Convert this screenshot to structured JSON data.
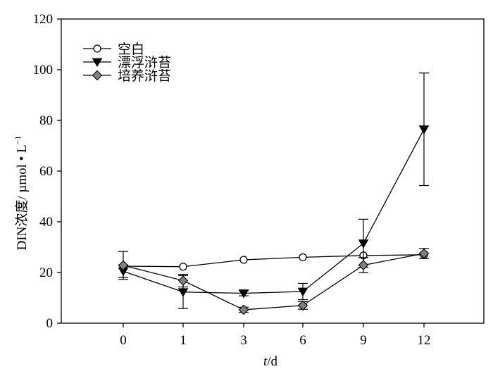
{
  "chart_data": {
    "type": "line",
    "categories": [
      "0",
      "1",
      "3",
      "6",
      "9",
      "12"
    ],
    "xlabel": {
      "italic": "t",
      "rest": "/d"
    },
    "ylabel": "DIN浓度/ µmol • L",
    "ylabel_superscript": "−1",
    "ylim": [
      0,
      120
    ],
    "yticks": [
      "0",
      "20",
      "40",
      "60",
      "80",
      "100",
      "120"
    ],
    "ytick_values": [
      0,
      20,
      40,
      60,
      80,
      100,
      120
    ],
    "grid": false,
    "legend_position": "top-left",
    "series": [
      {
        "name": "空白",
        "marker": "circle-open",
        "color": "#000000",
        "values": [
          22.5,
          22.3,
          25.0,
          26.0,
          26.7,
          27.0
        ],
        "errors": [
          0,
          0,
          0,
          0,
          0,
          0
        ]
      },
      {
        "name": "漂浮浒苔",
        "marker": "triangle-down-filled",
        "color": "#000000",
        "values": [
          20.5,
          12.3,
          11.8,
          12.5,
          31.5,
          76.5
        ],
        "errors": [
          2.5,
          6.5,
          1.0,
          3.2,
          9.5,
          22.2
        ]
      },
      {
        "name": "培养浒苔",
        "marker": "diamond-gray",
        "color": "#808080",
        "values": [
          22.8,
          16.8,
          5.3,
          7.0,
          22.9,
          27.5
        ],
        "errors": [
          5.5,
          2.5,
          1.0,
          1.5,
          3.0,
          2.0
        ]
      }
    ]
  }
}
